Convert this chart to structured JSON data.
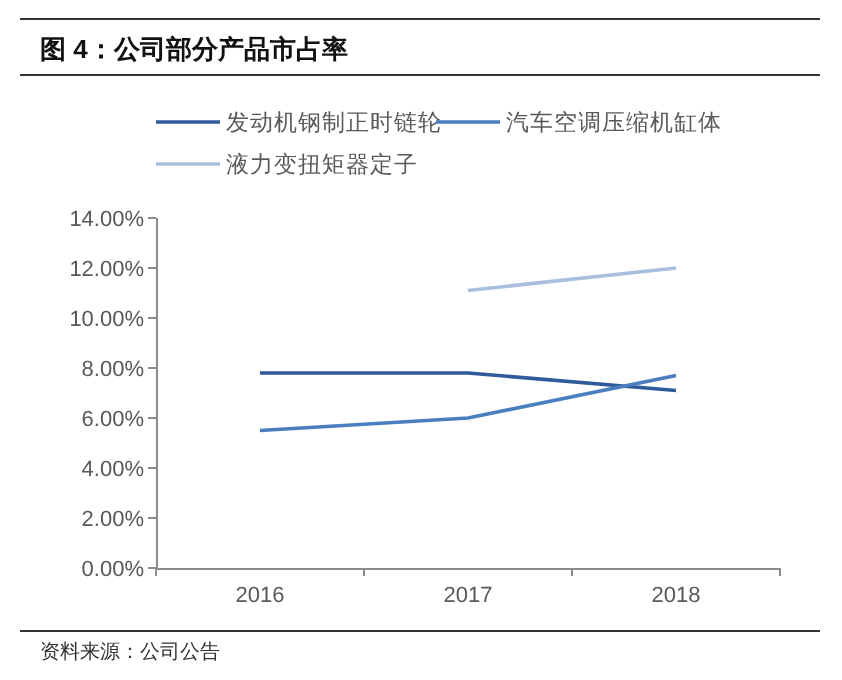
{
  "chart_data": {
    "type": "line",
    "title": "图 4：公司部分产品市占率",
    "categories": [
      "2016",
      "2017",
      "2018"
    ],
    "series": [
      {
        "name": "发动机钢制正时链轮",
        "color": "#2f5b9c",
        "values": [
          7.8,
          7.8,
          7.1
        ]
      },
      {
        "name": "汽车空调压缩机缸体",
        "color": "#4a7ec0",
        "values": [
          5.5,
          6.0,
          7.7
        ]
      },
      {
        "name": "液力变扭矩器定子",
        "color": "#a9bfe0",
        "values": [
          null,
          11.1,
          12.0
        ]
      }
    ],
    "ylim": [
      0,
      14
    ],
    "yticks": [
      {
        "value": 0,
        "label": "0.00%"
      },
      {
        "value": 2,
        "label": "2.00%"
      },
      {
        "value": 4,
        "label": "4.00%"
      },
      {
        "value": 6,
        "label": "6.00%"
      },
      {
        "value": 8,
        "label": "8.00%"
      },
      {
        "value": 10,
        "label": "10.00%"
      },
      {
        "value": 12,
        "label": "12.00%"
      },
      {
        "value": 14,
        "label": "14.00%"
      }
    ],
    "legend": "top",
    "annotations": [
      "资料来源：公司公告"
    ]
  }
}
